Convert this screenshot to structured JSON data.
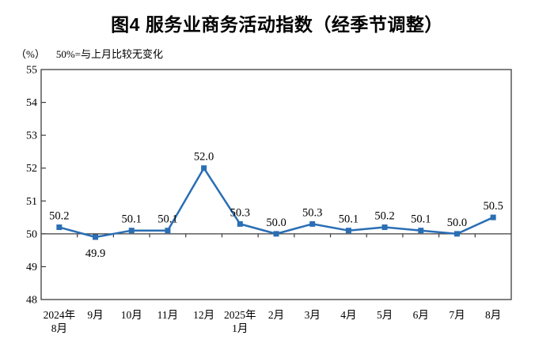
{
  "chart_data": {
    "type": "line",
    "title": "图4 服务业商务活动指数（经季节调整）",
    "unit_label": "（%）",
    "note": "50%=与上月比较无变化",
    "categories": [
      [
        "2024年",
        "8月"
      ],
      [
        "9月"
      ],
      [
        "10月"
      ],
      [
        "11月"
      ],
      [
        "12月"
      ],
      [
        "2025年",
        "1月"
      ],
      [
        "2月"
      ],
      [
        "3月"
      ],
      [
        "4月"
      ],
      [
        "5月"
      ],
      [
        "6月"
      ],
      [
        "7月"
      ],
      [
        "8月"
      ]
    ],
    "values": [
      50.2,
      49.9,
      50.1,
      50.1,
      52.0,
      50.3,
      50.0,
      50.3,
      50.1,
      50.2,
      50.1,
      50.0,
      50.5
    ],
    "data_labels": [
      "50.2",
      "49.9",
      "50.1",
      "50.1",
      "52.0",
      "50.3",
      "50.0",
      "50.3",
      "50.1",
      "50.2",
      "50.1",
      "50.0",
      "50.5"
    ],
    "labels_below": [
      1
    ],
    "ylim": [
      48,
      55
    ],
    "yticks": [
      48,
      49,
      50,
      51,
      52,
      53,
      54,
      55
    ],
    "baseline_value": 50,
    "grid": false,
    "legend": false,
    "line_color": "#2a6eb4",
    "marker_color": "#2a6eb4",
    "axis_color": "#3d3d3d"
  }
}
